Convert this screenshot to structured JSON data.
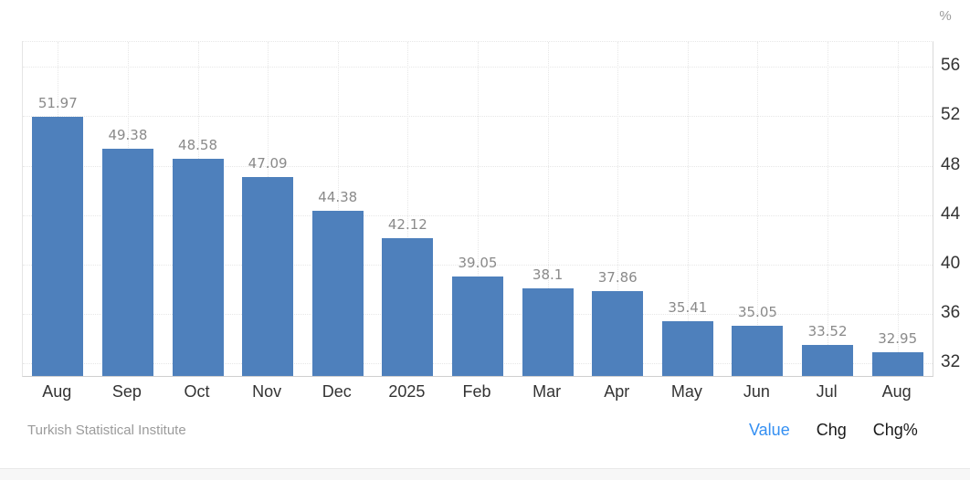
{
  "chart": {
    "unit": "%"
  },
  "footer": {
    "source": "Turkish Statistical Institute",
    "tabs": [
      {
        "label": "Value",
        "active": true
      },
      {
        "label": "Chg",
        "active": false
      },
      {
        "label": "Chg%",
        "active": false
      }
    ]
  },
  "colors": {
    "bar": "#4e80bc",
    "grid": "#e7e7e7",
    "axis_line_bottom": "#cfcfcf",
    "axis_line_right": "#d9d9d9",
    "value_label": "#8a8a8a",
    "axis_label": "#333333",
    "source_text": "#9b9b9b",
    "tab_active": "#348ff2",
    "tab_inactive": "#1a1a1a",
    "strip_bg": "#f7f7f7",
    "strip_border": "#e9e9e9"
  },
  "chart_data": {
    "type": "bar",
    "categories": [
      "Aug",
      "Sep",
      "Oct",
      "Nov",
      "Dec",
      "2025",
      "Feb",
      "Mar",
      "Apr",
      "May",
      "Jun",
      "Jul",
      "Aug"
    ],
    "values": [
      51.97,
      49.38,
      48.58,
      47.09,
      44.38,
      42.12,
      39.05,
      38.1,
      37.86,
      35.41,
      35.05,
      33.52,
      32.95
    ],
    "value_labels": [
      "51.97",
      "49.38",
      "48.58",
      "47.09",
      "44.38",
      "42.12",
      "39.05",
      "38.1",
      "37.86",
      "35.41",
      "35.05",
      "33.52",
      "32.95"
    ],
    "title": "",
    "xlabel": "",
    "ylabel": "%",
    "ylim": [
      31,
      58
    ],
    "yticks": [
      56,
      52,
      48,
      44,
      40,
      36,
      32
    ],
    "grid": true,
    "legend_position": "none",
    "source": "Turkish Statistical Institute"
  }
}
